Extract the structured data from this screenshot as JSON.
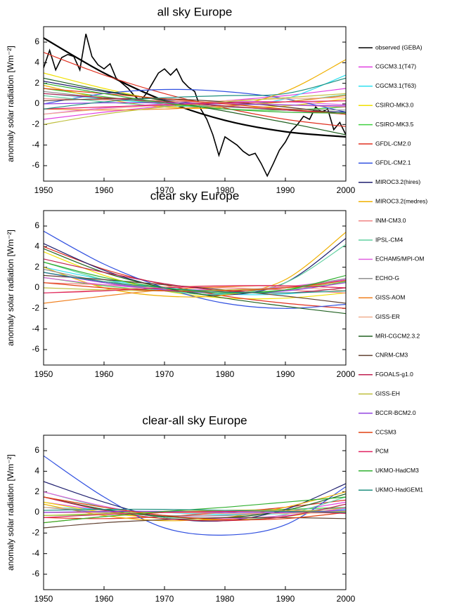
{
  "chart_data": [
    {
      "type": "line",
      "title": "all sky Europe",
      "ylabel": "anomaly solar radiation [Wm⁻²]",
      "xlim": [
        1950,
        2000
      ],
      "ylim": [
        -7.5,
        7.5
      ],
      "xticks": [
        1950,
        1960,
        1970,
        1980,
        1990,
        2000
      ],
      "yticks": [
        -6,
        -4,
        -2,
        0,
        2,
        4,
        6
      ],
      "x": [
        1950,
        1960,
        1970,
        1980,
        1990,
        2000
      ],
      "series": [
        {
          "name": "observed (GEBA)",
          "color": "#000000",
          "x": [
            1950,
            1951,
            1952,
            1953,
            1954,
            1955,
            1956,
            1957,
            1958,
            1959,
            1960,
            1961,
            1962,
            1963,
            1964,
            1965,
            1966,
            1967,
            1968,
            1969,
            1970,
            1971,
            1972,
            1973,
            1974,
            1975,
            1976,
            1977,
            1978,
            1979,
            1980,
            1981,
            1982,
            1983,
            1984,
            1985,
            1986,
            1987,
            1988,
            1989,
            1990,
            1991,
            1992,
            1993,
            1994,
            1995,
            1996,
            1997,
            1998,
            1999,
            2000
          ],
          "values": [
            3.5,
            5.2,
            3.3,
            4.5,
            4.8,
            4.6,
            3.3,
            6.8,
            4.6,
            3.8,
            3.4,
            3.9,
            2.5,
            2.0,
            1.5,
            0.8,
            0.3,
            1.0,
            2.0,
            3.0,
            3.4,
            2.8,
            3.4,
            2.2,
            1.6,
            1.2,
            -0.5,
            -1.5,
            -3.0,
            -5.0,
            -3.2,
            -3.6,
            -4.0,
            -4.6,
            -5.0,
            -4.8,
            -5.8,
            -7.0,
            -5.8,
            -4.5,
            -3.7,
            -2.6,
            -2.0,
            -1.2,
            -1.5,
            -0.3,
            -0.8,
            -0.5,
            -2.5,
            -1.8,
            -3.0
          ]
        },
        {
          "color": "#000000",
          "values": [
            6.4,
            3.0,
            0.3,
            -1.6,
            -2.7,
            -3.2
          ]
        },
        {
          "name": "CGCM3.1(T47)",
          "color": "#e040e0",
          "values": [
            -1.5,
            -0.8,
            -0.2,
            0.3,
            0.8,
            1.5
          ]
        },
        {
          "name": "CGCM3.1(T63)",
          "color": "#30e0f0",
          "values": [
            1.0,
            0.5,
            0.0,
            -0.2,
            0.5,
            2.8
          ]
        },
        {
          "name": "CSIRO-MK3.0",
          "color": "#f0e000",
          "values": [
            3.0,
            1.5,
            0.3,
            -0.3,
            -0.2,
            0.5
          ]
        },
        {
          "name": "CSIRO-MK3.5",
          "color": "#40d040",
          "values": [
            1.5,
            0.7,
            0.0,
            -0.5,
            -0.6,
            -0.3
          ]
        },
        {
          "name": "GFDL-CM2.0",
          "color": "#e03020",
          "values": [
            5.0,
            2.8,
            1.0,
            -0.4,
            -1.5,
            -2.2
          ]
        },
        {
          "name": "GFDL-CM2.1",
          "color": "#3050e0",
          "values": [
            0.0,
            1.0,
            1.4,
            1.2,
            0.5,
            -0.8
          ]
        },
        {
          "name": "MIROC3.2(hires)",
          "color": "#202070",
          "values": [
            2.2,
            1.2,
            0.4,
            -0.2,
            -0.6,
            -0.8
          ]
        },
        {
          "name": "MIROC3.2(medres)",
          "color": "#f0b000",
          "values": [
            1.8,
            0.5,
            -0.3,
            -0.3,
            1.2,
            4.3
          ]
        },
        {
          "name": "INM-CM3.0",
          "color": "#f08080",
          "values": [
            0.5,
            0.4,
            0.3,
            0.1,
            -0.1,
            -0.3
          ]
        },
        {
          "name": "IPSL-CM4",
          "color": "#60d0a0",
          "values": [
            0.8,
            0.2,
            -0.2,
            -0.2,
            0.2,
            0.9
          ]
        },
        {
          "name": "ECHAM5/MPI-OM",
          "color": "#e060e0",
          "values": [
            -1.0,
            -0.4,
            0.0,
            0.2,
            0.2,
            -0.1
          ]
        },
        {
          "name": "ECHO-G",
          "color": "#909090",
          "values": [
            1.2,
            0.6,
            0.1,
            -0.3,
            -0.5,
            -0.6
          ]
        },
        {
          "name": "GISS-AOM",
          "color": "#f08020",
          "values": [
            -0.5,
            -0.6,
            -0.5,
            -0.2,
            0.2,
            0.8
          ]
        },
        {
          "name": "GISS-ER",
          "color": "#f0b090",
          "values": [
            -1.0,
            -0.5,
            -0.1,
            0.3,
            0.5,
            0.6
          ]
        },
        {
          "name": "MRI-CGCM2.3.2",
          "color": "#206020",
          "values": [
            2.5,
            1.3,
            0.3,
            -0.7,
            -1.8,
            -3.0
          ]
        },
        {
          "name": "CNRM-CM3",
          "color": "#604030",
          "values": [
            0.3,
            0.5,
            0.5,
            0.2,
            -0.3,
            -1.0
          ]
        },
        {
          "name": "FGOALS-g1.0",
          "color": "#c02050",
          "values": [
            1.0,
            0.6,
            0.2,
            -0.2,
            -0.6,
            -1.0
          ]
        },
        {
          "name": "GISS-EH",
          "color": "#c0c040",
          "values": [
            -2.0,
            -1.0,
            -0.3,
            0.2,
            0.6,
            1.0
          ]
        },
        {
          "name": "BCCR-BCM2.0",
          "color": "#9040e0",
          "values": [
            0.0,
            0.1,
            0.1,
            0.0,
            -0.1,
            -0.2
          ]
        },
        {
          "name": "CCSM3",
          "color": "#e04010",
          "values": [
            1.5,
            1.0,
            0.5,
            0.0,
            -0.5,
            -1.0
          ]
        },
        {
          "name": "PCM",
          "color": "#e02060",
          "values": [
            -0.5,
            -0.3,
            -0.1,
            0.1,
            0.2,
            0.3
          ]
        },
        {
          "name": "UKMO-HadCM3",
          "color": "#30b030",
          "values": [
            2.0,
            1.0,
            0.1,
            -0.5,
            -0.8,
            -0.9
          ]
        },
        {
          "name": "UKMO-HadGEM1",
          "color": "#209080",
          "values": [
            -0.5,
            0.2,
            0.6,
            0.8,
            1.0,
            2.5
          ]
        }
      ]
    },
    {
      "type": "line",
      "title": "clear sky Europe",
      "ylabel": "anomaly solar radiation [Wm⁻²]",
      "xlim": [
        1950,
        2000
      ],
      "ylim": [
        -7.5,
        7.5
      ],
      "xticks": [
        1950,
        1960,
        1970,
        1980,
        1990,
        2000
      ],
      "yticks": [
        -6,
        -4,
        -2,
        0,
        2,
        4,
        6
      ],
      "x": [
        1950,
        1960,
        1970,
        1980,
        1990,
        2000
      ],
      "series": [
        {
          "color": "#e040e0",
          "values": [
            1.5,
            0.5,
            -0.2,
            -0.5,
            -0.2,
            0.8
          ]
        },
        {
          "color": "#30e0f0",
          "values": [
            2.0,
            0.8,
            0.0,
            -0.6,
            -0.6,
            0.0
          ]
        },
        {
          "color": "#f0e000",
          "values": [
            3.5,
            1.2,
            -0.3,
            -1.0,
            -1.0,
            -0.5
          ]
        },
        {
          "color": "#40d040",
          "values": [
            1.0,
            0.2,
            -0.3,
            -0.5,
            -0.2,
            0.6
          ]
        },
        {
          "color": "#e03020",
          "values": [
            4.0,
            1.8,
            0.3,
            -0.8,
            -1.5,
            -2.0
          ]
        },
        {
          "color": "#3050e0",
          "values": [
            5.5,
            2.3,
            0.0,
            -1.5,
            -2.0,
            -1.6
          ]
        },
        {
          "color": "#202070",
          "values": [
            4.3,
            1.7,
            0.0,
            -0.7,
            0.5,
            4.8
          ]
        },
        {
          "color": "#f0b000",
          "values": [
            2.0,
            0.0,
            -0.8,
            -0.7,
            0.8,
            5.4
          ]
        },
        {
          "color": "#f08080",
          "values": [
            0.5,
            0.3,
            0.1,
            0.0,
            -0.2,
            -0.5
          ]
        },
        {
          "color": "#60d0a0",
          "values": [
            2.5,
            0.8,
            -0.3,
            -0.6,
            0.5,
            4.2
          ]
        },
        {
          "color": "#e060e0",
          "values": [
            1.0,
            0.3,
            -0.1,
            -0.2,
            0.1,
            0.8
          ]
        },
        {
          "color": "#909090",
          "values": [
            1.8,
            0.6,
            -0.1,
            -0.3,
            0.0,
            0.9
          ]
        },
        {
          "color": "#f08020",
          "values": [
            -1.5,
            -0.8,
            -0.2,
            0.1,
            0.2,
            0.0
          ]
        },
        {
          "color": "#f0b090",
          "values": [
            -0.5,
            -0.2,
            0.1,
            0.2,
            0.1,
            -0.3
          ]
        },
        {
          "color": "#206020",
          "values": [
            3.8,
            1.5,
            0.0,
            -1.0,
            -1.8,
            -2.5
          ]
        },
        {
          "color": "#604030",
          "values": [
            1.2,
            0.8,
            0.3,
            -0.2,
            -0.8,
            -1.5
          ]
        },
        {
          "color": "#c02050",
          "values": [
            2.8,
            1.5,
            0.4,
            -0.3,
            -0.5,
            0.0
          ]
        },
        {
          "color": "#c0c040",
          "values": [
            0.0,
            -0.2,
            -0.3,
            -0.2,
            0.0,
            0.5
          ]
        },
        {
          "color": "#9040e0",
          "values": [
            1.5,
            0.5,
            -0.2,
            -0.5,
            -0.3,
            0.5
          ]
        },
        {
          "color": "#e04010",
          "values": [
            0.5,
            0.0,
            -0.3,
            -0.3,
            0.0,
            0.7
          ]
        },
        {
          "color": "#e02060",
          "values": [
            -0.5,
            -0.3,
            0.0,
            0.2,
            0.2,
            0.0
          ]
        },
        {
          "color": "#30b030",
          "values": [
            2.5,
            1.0,
            0.0,
            -0.5,
            -0.2,
            1.2
          ]
        },
        {
          "color": "#209080",
          "values": [
            1.5,
            0.6,
            0.0,
            -0.4,
            -0.5,
            -0.3
          ]
        }
      ]
    },
    {
      "type": "line",
      "title": "clear-all sky Europe",
      "ylabel": "anomaly solar radiation [Wm⁻²]",
      "xlim": [
        1950,
        2000
      ],
      "ylim": [
        -7.5,
        7.5
      ],
      "xticks": [
        1950,
        1960,
        1970,
        1980,
        1990,
        2000
      ],
      "yticks": [
        -6,
        -4,
        -2,
        0,
        2,
        4,
        6
      ],
      "x": [
        1950,
        1960,
        1970,
        1980,
        1990,
        2000
      ],
      "series": [
        {
          "color": "#e040e0",
          "values": [
            1.0,
            0.2,
            -0.3,
            -0.3,
            0.1,
            1.0
          ]
        },
        {
          "color": "#30e0f0",
          "values": [
            0.5,
            0.3,
            0.0,
            -0.2,
            -0.1,
            0.3
          ]
        },
        {
          "color": "#f0e000",
          "values": [
            1.0,
            0.0,
            -0.6,
            -0.7,
            -0.4,
            0.5
          ]
        },
        {
          "color": "#40d040",
          "values": [
            -0.3,
            -0.2,
            0.0,
            0.2,
            0.3,
            0.5
          ]
        },
        {
          "color": "#e03020",
          "values": [
            -0.5,
            -0.6,
            -0.4,
            0.0,
            0.5,
            1.2
          ]
        },
        {
          "color": "#3050e0",
          "values": [
            5.5,
            1.5,
            -1.5,
            -2.2,
            -1.2,
            2.5
          ]
        },
        {
          "color": "#202070",
          "values": [
            3.0,
            1.0,
            -0.5,
            -0.8,
            0.3,
            2.8
          ]
        },
        {
          "color": "#f0b000",
          "values": [
            0.8,
            -0.3,
            -0.8,
            -0.5,
            0.5,
            2.0
          ]
        },
        {
          "color": "#f08080",
          "values": [
            0.0,
            0.0,
            0.0,
            0.0,
            0.0,
            0.0
          ]
        },
        {
          "color": "#60d0a0",
          "values": [
            2.0,
            0.5,
            -0.5,
            -0.8,
            -0.2,
            1.5
          ]
        },
        {
          "color": "#e060e0",
          "values": [
            2.0,
            0.6,
            -0.3,
            -0.6,
            -0.3,
            0.4
          ]
        },
        {
          "color": "#909090",
          "values": [
            0.5,
            0.0,
            -0.3,
            -0.3,
            0.0,
            0.5
          ]
        },
        {
          "color": "#f08020",
          "values": [
            -1.0,
            -0.4,
            0.0,
            0.2,
            0.2,
            0.0
          ]
        },
        {
          "color": "#f0b090",
          "values": [
            0.5,
            0.2,
            0.0,
            -0.1,
            -0.1,
            0.0
          ]
        },
        {
          "color": "#206020",
          "values": [
            1.5,
            0.3,
            -0.4,
            -0.5,
            0.2,
            1.8
          ]
        },
        {
          "color": "#604030",
          "values": [
            -1.5,
            -1.0,
            -0.7,
            -0.5,
            -0.5,
            -0.6
          ]
        },
        {
          "color": "#c02050",
          "values": [
            1.5,
            0.2,
            -0.6,
            -0.8,
            -0.4,
            0.8
          ]
        },
        {
          "color": "#c0c040",
          "values": [
            -0.3,
            -0.1,
            0.1,
            0.2,
            0.2,
            0.1
          ]
        },
        {
          "color": "#9040e0",
          "values": [
            0.0,
            0.1,
            0.1,
            0.0,
            0.0,
            0.2
          ]
        },
        {
          "color": "#e04010",
          "values": [
            1.5,
            0.5,
            -0.3,
            -0.7,
            -0.6,
            0.0
          ]
        },
        {
          "color": "#e02060",
          "values": [
            -0.5,
            -0.2,
            0.0,
            0.1,
            0.1,
            -0.1
          ]
        },
        {
          "color": "#30b030",
          "values": [
            -1.0,
            -0.4,
            0.1,
            0.5,
            1.0,
            1.5
          ]
        },
        {
          "color": "#209080",
          "values": [
            0.2,
            0.3,
            0.3,
            0.2,
            0.1,
            0.0
          ]
        }
      ]
    }
  ]
}
